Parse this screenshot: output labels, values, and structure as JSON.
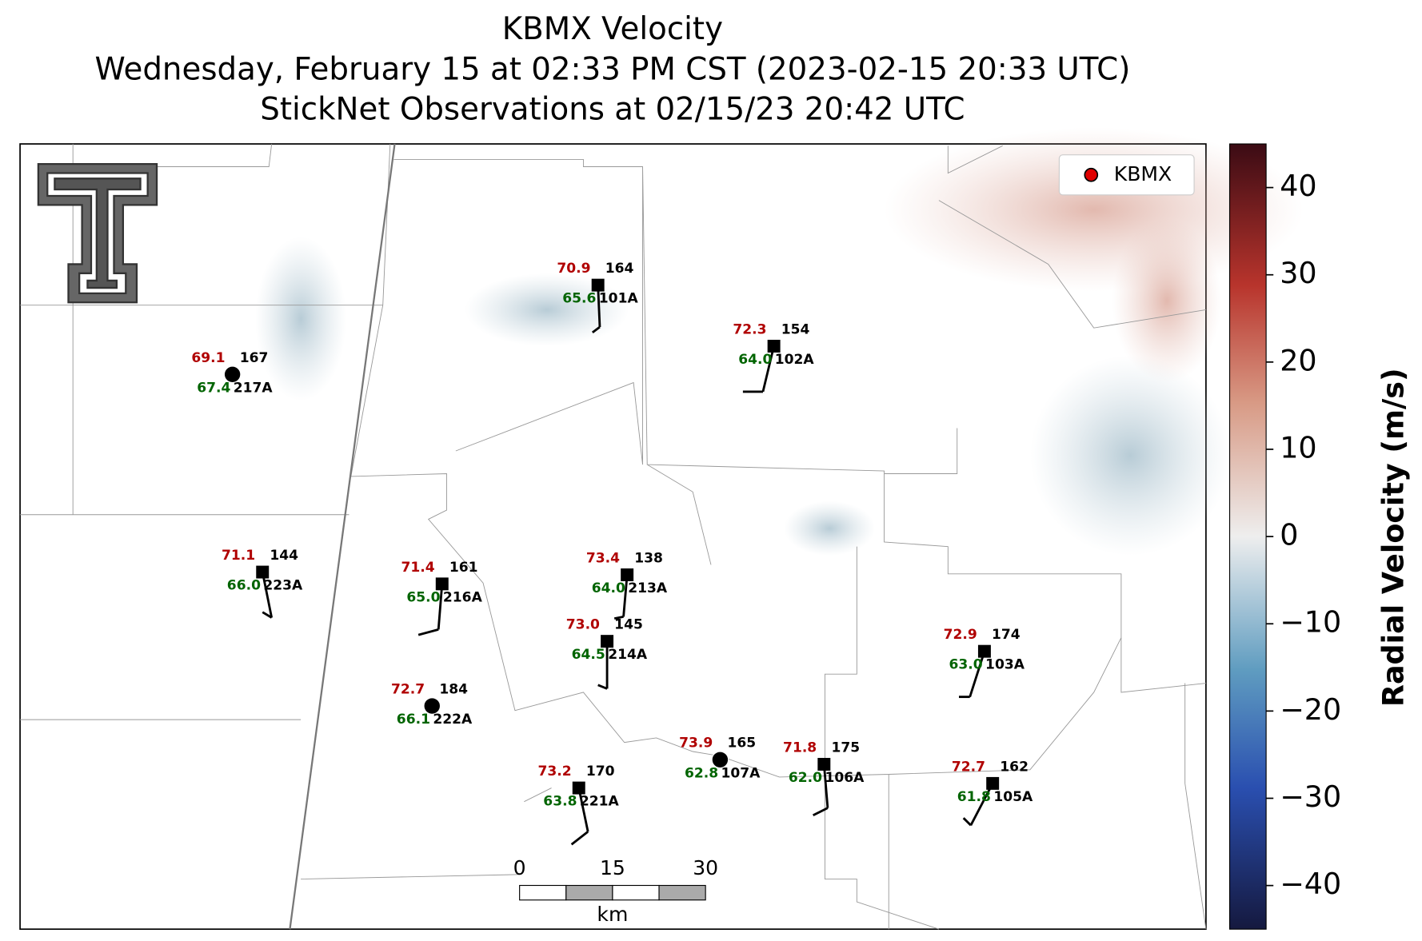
{
  "title_lines": [
    "KBMX Velocity",
    "Wednesday, February 15 at 02:33 PM CST (2023-02-15 20:33 UTC)",
    "StickNet Observations at 02/15/23 20:42 UTC"
  ],
  "legend": {
    "label": "KBMX",
    "color": "#e00000"
  },
  "stations": [
    {
      "temp": "70.9",
      "dewpoint": "65.6",
      "code": "164",
      "id": "101A"
    },
    {
      "temp": "72.3",
      "dewpoint": "64.0",
      "code": "154",
      "id": "102A"
    },
    {
      "temp": "69.1",
      "dewpoint": "67.4",
      "code": "167",
      "id": "217A"
    },
    {
      "temp": "71.1",
      "dewpoint": "66.0",
      "code": "144",
      "id": "223A"
    },
    {
      "temp": "71.4",
      "dewpoint": "65.0",
      "code": "161",
      "id": "216A"
    },
    {
      "temp": "73.4",
      "dewpoint": "64.0",
      "code": "138",
      "id": "213A"
    },
    {
      "temp": "73.0",
      "dewpoint": "64.5",
      "code": "145",
      "id": "214A"
    },
    {
      "temp": "72.7",
      "dewpoint": "66.1",
      "code": "184",
      "id": "222A"
    },
    {
      "temp": "73.9",
      "dewpoint": "62.8",
      "code": "165",
      "id": "107A"
    },
    {
      "temp": "71.8",
      "dewpoint": "62.0",
      "code": "175",
      "id": "106A"
    },
    {
      "temp": "72.9",
      "dewpoint": "63.0",
      "code": "174",
      "id": "103A"
    },
    {
      "temp": "72.7",
      "dewpoint": "61.8",
      "code": "162",
      "id": "105A"
    },
    {
      "temp": "73.2",
      "dewpoint": "63.8",
      "code": "170",
      "id": "221A"
    }
  ],
  "scale_bar": {
    "ticks": [
      "0",
      "15",
      "30"
    ],
    "unit": "km"
  },
  "colorbar": {
    "label": "Radial Velocity (m/s)",
    "lim": [
      -45,
      45
    ],
    "ticks": [
      {
        "value": -40,
        "label": "−40"
      },
      {
        "value": -30,
        "label": "−30"
      },
      {
        "value": -20,
        "label": "−20"
      },
      {
        "value": -10,
        "label": "−10"
      },
      0,
      10,
      20,
      30,
      40
    ]
  }
}
